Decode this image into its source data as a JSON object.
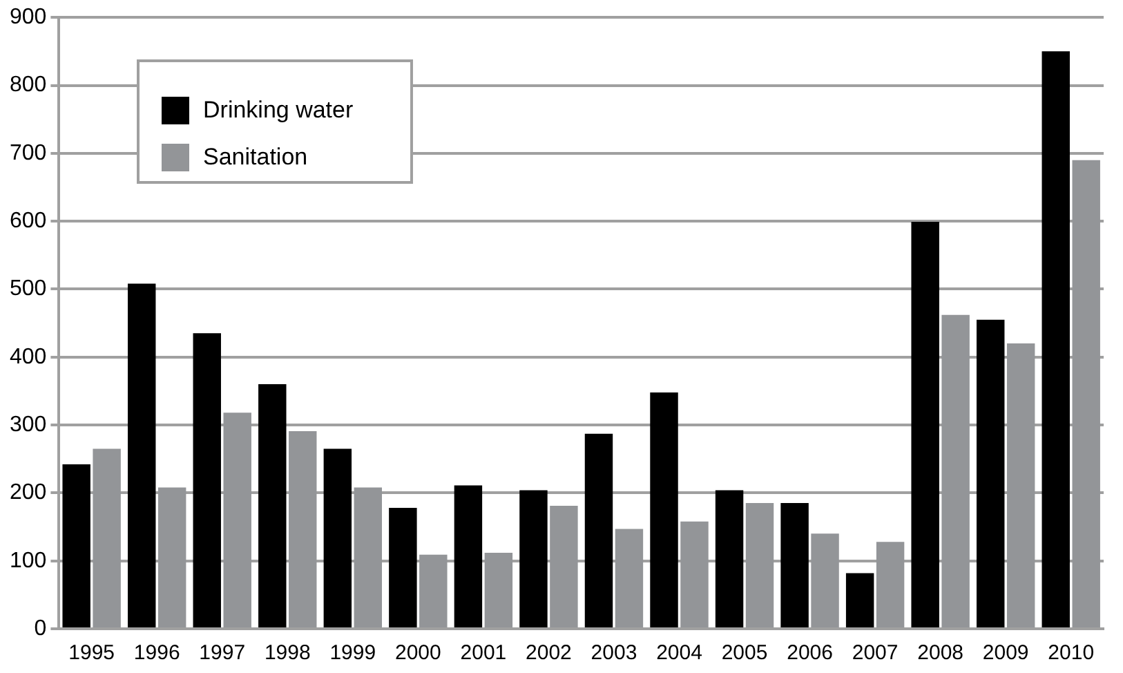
{
  "chart_data": {
    "type": "bar",
    "categories": [
      "1995",
      "1996",
      "1997",
      "1998",
      "1999",
      "2000",
      "2001",
      "2002",
      "2003",
      "2004",
      "2005",
      "2006",
      "2007",
      "2008",
      "2009",
      "2010"
    ],
    "series": [
      {
        "name": "Drinking water",
        "color": "#000000",
        "values": [
          242,
          508,
          435,
          360,
          265,
          178,
          211,
          204,
          287,
          348,
          204,
          185,
          82,
          599,
          455,
          850
        ]
      },
      {
        "name": "Sanitation",
        "color": "#939598",
        "values": [
          265,
          208,
          318,
          291,
          208,
          109,
          112,
          181,
          147,
          158,
          185,
          140,
          128,
          462,
          420,
          690
        ]
      }
    ],
    "ylim": [
      0,
      900
    ],
    "yticks": [
      0,
      100,
      200,
      300,
      400,
      500,
      600,
      700,
      800,
      900
    ],
    "grid": "y",
    "legend": "top left"
  }
}
